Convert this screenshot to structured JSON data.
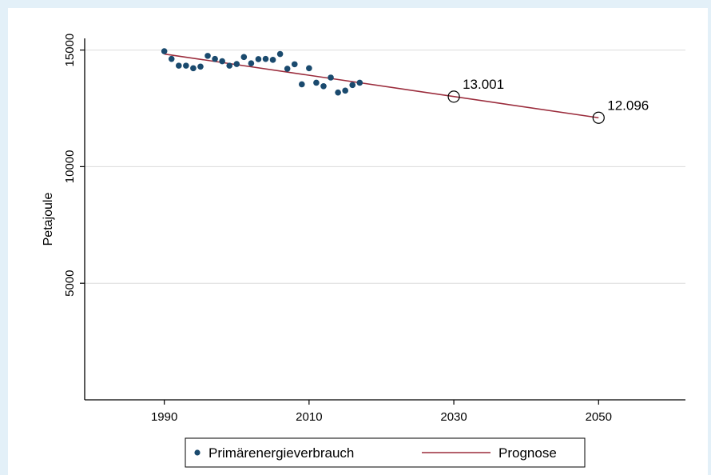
{
  "colors": {
    "page_background": "#e3f0f8",
    "plot_background": "#ffffff",
    "dots": "#1a4a6e",
    "line": "#9b2c3c",
    "grid": "#dcdcdc"
  },
  "chart_data": {
    "type": "scatter",
    "ylabel": "Petajoule",
    "xlabel": "",
    "xlim": [
      1979,
      2062
    ],
    "ylim": [
      0,
      15500
    ],
    "x_ticks": [
      1990,
      2010,
      2030,
      2050
    ],
    "y_ticks": [
      5000,
      10000,
      15000
    ],
    "grid": "horizontal",
    "legend_position": "bottom",
    "series": [
      {
        "name": "Primärenergieverbrauch",
        "kind": "scatter",
        "color": "#1a4a6e",
        "points": [
          {
            "x": 1990,
            "y": 14950
          },
          {
            "x": 1991,
            "y": 14620
          },
          {
            "x": 1992,
            "y": 14330
          },
          {
            "x": 1993,
            "y": 14330
          },
          {
            "x": 1994,
            "y": 14220
          },
          {
            "x": 1995,
            "y": 14290
          },
          {
            "x": 1996,
            "y": 14750
          },
          {
            "x": 1997,
            "y": 14620
          },
          {
            "x": 1998,
            "y": 14520
          },
          {
            "x": 1999,
            "y": 14330
          },
          {
            "x": 2000,
            "y": 14400
          },
          {
            "x": 2001,
            "y": 14700
          },
          {
            "x": 2002,
            "y": 14430
          },
          {
            "x": 2003,
            "y": 14610
          },
          {
            "x": 2004,
            "y": 14620
          },
          {
            "x": 2005,
            "y": 14580
          },
          {
            "x": 2006,
            "y": 14830
          },
          {
            "x": 2007,
            "y": 14200
          },
          {
            "x": 2008,
            "y": 14390
          },
          {
            "x": 2009,
            "y": 13530
          },
          {
            "x": 2010,
            "y": 14220
          },
          {
            "x": 2011,
            "y": 13600
          },
          {
            "x": 2012,
            "y": 13450
          },
          {
            "x": 2013,
            "y": 13820
          },
          {
            "x": 2014,
            "y": 13180
          },
          {
            "x": 2015,
            "y": 13260
          },
          {
            "x": 2016,
            "y": 13500
          },
          {
            "x": 2017,
            "y": 13600
          }
        ]
      },
      {
        "name": "Prognose",
        "kind": "line",
        "color": "#9b2c3c",
        "points": [
          {
            "x": 1990,
            "y": 14830
          },
          {
            "x": 2050,
            "y": 12096
          }
        ]
      }
    ],
    "annotations": [
      {
        "x": 2030,
        "y": 13001,
        "text": "13.001"
      },
      {
        "x": 2050,
        "y": 12096,
        "text": "12.096"
      }
    ]
  }
}
